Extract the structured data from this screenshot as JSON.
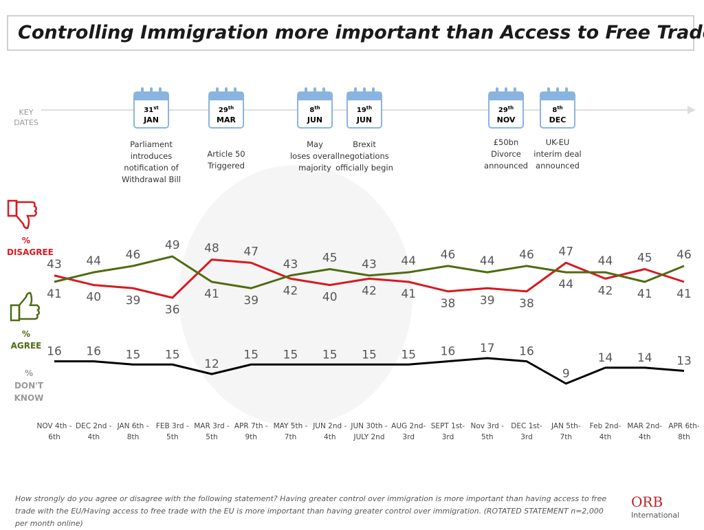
{
  "chart_data": {
    "type": "line",
    "title": "Controlling Immigration more important than Access to Free Trade?",
    "key_dates_label": "KEY DATES",
    "events": [
      {
        "day": "31",
        "suffix": "st",
        "month": "JAN",
        "text": "Parliament\nintroduces\nnotification of\nWithdrawal Bill"
      },
      {
        "day": "29",
        "suffix": "th",
        "month": "MAR",
        "text": "Article 50\nTriggered"
      },
      {
        "day": "8",
        "suffix": "th",
        "month": "JUN",
        "text": "May\nloses overall\nmajority"
      },
      {
        "day": "19",
        "suffix": "th",
        "month": "JUN",
        "text": "Brexit\nnegotiations\nofficially begin"
      },
      {
        "day": "29",
        "suffix": "th",
        "month": "NOV",
        "text": "£50bn\nDivorce\nannounced"
      },
      {
        "day": "8",
        "suffix": "th",
        "month": "DEC",
        "text": "UK-EU\ninterim deal\nannounced"
      }
    ],
    "categories": [
      "NOV 4th - 6th",
      "DEC 2nd - 4th",
      "JAN 6th - 8th",
      "FEB 3rd - 5th",
      "MAR 3rd - 5th",
      "APR 7th - 9th",
      "MAY 5th - 7th",
      "JUN 2nd - 4th",
      "JUN 30th - JULY 2nd",
      "AUG 2nd- 3rd",
      "SEPT 1st- 3rd",
      "Nov 3rd - 5th",
      "DEC 1st- 3rd",
      "JAN 5th- 7th",
      "Feb 2nd- 4th",
      "MAR 2nd- 4th",
      "APR 6th- 8th"
    ],
    "series": [
      {
        "name": "% DISAGREE",
        "color": "#d71920",
        "values": [
          43,
          40,
          39,
          36,
          48,
          47,
          42,
          40,
          42,
          41,
          38,
          39,
          38,
          47,
          42,
          45,
          41
        ]
      },
      {
        "name": "% AGREE",
        "color": "#4f6b12",
        "values": [
          41,
          44,
          46,
          49,
          41,
          39,
          43,
          45,
          43,
          44,
          46,
          44,
          46,
          44,
          44,
          41,
          46
        ]
      },
      {
        "name": "% DON'T KNOW",
        "color": "#000000",
        "values": [
          16,
          16,
          15,
          15,
          12,
          15,
          15,
          15,
          15,
          15,
          16,
          17,
          16,
          9,
          14,
          14,
          13
        ]
      }
    ],
    "footnote": "How strongly do you agree or disagree with the following statement?  Having greater control over immigration is more important than having access to free trade with the EU/Having access to free trade with the EU is more important than having greater control over immigration. (ROTATED STATEMENT n=2,000 per month online)",
    "logo": "ORB",
    "logo_subtitle": "International"
  }
}
